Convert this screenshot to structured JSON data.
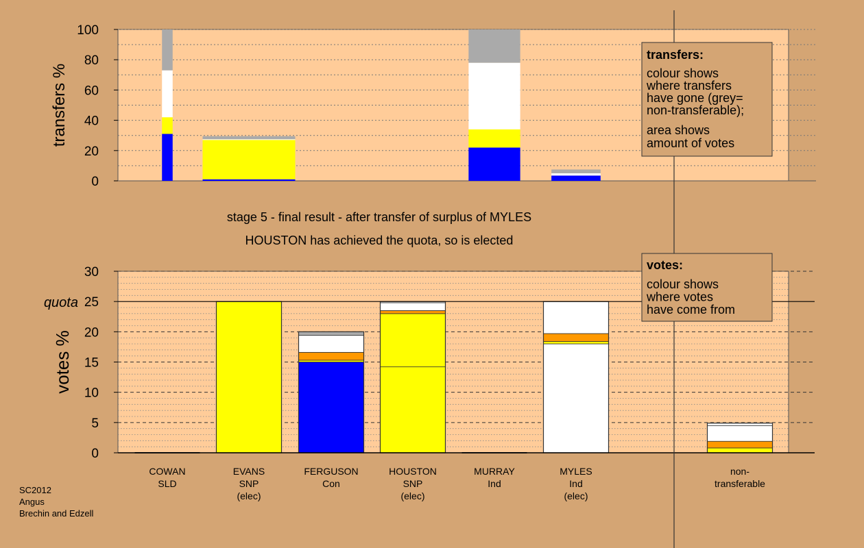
{
  "colors": {
    "background": "#D4A574",
    "plot_area": "#FFCC99",
    "blue": "#0000FF",
    "yellow": "#FFFF00",
    "white": "#FFFFFF",
    "grey": "#AAAAAA",
    "orange": "#FF9900"
  },
  "captions": {
    "line1": "stage 5 - final result - after transfer of surplus of MYLES",
    "line2": "HOUSTON has achieved the quota, so is elected"
  },
  "footer": {
    "line1": "SC2012",
    "line2": "Angus",
    "line3": "Brechin and Edzell"
  },
  "legend_transfers": {
    "title": "transfers:",
    "lines1": [
      "colour shows",
      "where transfers",
      "have gone (grey=",
      "non-transferable);"
    ],
    "lines2": [
      "area shows",
      "amount of votes"
    ]
  },
  "legend_votes": {
    "title": "votes:",
    "lines": [
      "colour shows",
      "where votes",
      "have come from"
    ]
  },
  "candidates": [
    {
      "name": "COWAN",
      "party": "SLD",
      "status": ""
    },
    {
      "name": "EVANS",
      "party": "SNP",
      "status": "(elec)"
    },
    {
      "name": "FERGUSON",
      "party": "Con",
      "status": ""
    },
    {
      "name": "HOUSTON",
      "party": "SNP",
      "status": "(elec)"
    },
    {
      "name": "MURRAY",
      "party": "Ind",
      "status": ""
    },
    {
      "name": "MYLES",
      "party": "Ind",
      "status": "(elec)"
    },
    {
      "name": "",
      "party": "",
      "status": ""
    },
    {
      "name": "non-",
      "party": "transferable",
      "status": ""
    }
  ],
  "chart_data": [
    {
      "type": "bar",
      "stacked": true,
      "ylabel": "transfers %",
      "ylim": [
        0,
        100
      ],
      "yticks": [
        0,
        20,
        40,
        60,
        80,
        100
      ],
      "grid": "dotted",
      "note": "bar width shows amount of votes transferred; segments stacked bottom to top",
      "bars": [
        {
          "column": 0,
          "width": 0.13,
          "segments": [
            {
              "color": "blue",
              "value": 31
            },
            {
              "color": "yellow",
              "value": 11
            },
            {
              "color": "white",
              "value": 31
            },
            {
              "color": "grey",
              "value": 27
            }
          ]
        },
        {
          "column": 1,
          "width": 1.13,
          "segments": [
            {
              "color": "blue",
              "value": 1
            },
            {
              "color": "yellow",
              "value": 26
            },
            {
              "color": "white",
              "value": 0.5
            },
            {
              "color": "grey",
              "value": 2
            }
          ]
        },
        {
          "column": 4,
          "width": 0.63,
          "segments": [
            {
              "color": "blue",
              "value": 22
            },
            {
              "color": "yellow",
              "value": 12
            },
            {
              "color": "white",
              "value": 44
            },
            {
              "color": "grey",
              "value": 22
            }
          ]
        },
        {
          "column": 5,
          "width": 0.6,
          "segments": [
            {
              "color": "blue",
              "value": 3.5
            },
            {
              "color": "white",
              "value": 1.5
            },
            {
              "color": "grey",
              "value": 2.5
            }
          ]
        }
      ]
    },
    {
      "type": "bar",
      "stacked": true,
      "ylabel": "votes %",
      "ylim": [
        0,
        30
      ],
      "yticks": [
        0,
        5,
        10,
        15,
        20,
        25,
        30
      ],
      "quota": {
        "label": "quota",
        "value": 25
      },
      "bars": [
        {
          "candidate": "COWAN",
          "segments": []
        },
        {
          "candidate": "EVANS",
          "segments": [
            {
              "color": "yellow",
              "value": 25
            }
          ]
        },
        {
          "candidate": "FERGUSON",
          "segments": [
            {
              "color": "blue",
              "value": 15
            },
            {
              "color": "yellow",
              "value": 0.3
            },
            {
              "color": "orange",
              "value": 1.3
            },
            {
              "color": "white",
              "value": 2.8
            },
            {
              "color": "grey",
              "value": 0.6
            }
          ]
        },
        {
          "candidate": "HOUSTON",
          "segments": [
            {
              "color": "yellow",
              "value": 14.2
            },
            {
              "color": "yellow",
              "value": 8.8
            },
            {
              "color": "orange",
              "value": 0.5
            },
            {
              "color": "white",
              "value": 1.3
            },
            {
              "color": "white",
              "value": 0.2
            }
          ]
        },
        {
          "candidate": "MURRAY",
          "segments": []
        },
        {
          "candidate": "MYLES",
          "segments": [
            {
              "color": "white",
              "value": 18
            },
            {
              "color": "yellow",
              "value": 0.4
            },
            {
              "color": "orange",
              "value": 1.3
            },
            {
              "color": "white",
              "value": 5.3
            }
          ]
        },
        {
          "candidate": "",
          "segments": []
        },
        {
          "candidate": "non-transferable",
          "segments": [
            {
              "color": "yellow",
              "value": 0.8
            },
            {
              "color": "orange",
              "value": 1.1
            },
            {
              "color": "white",
              "value": 2.6
            },
            {
              "color": "white",
              "value": 0.4
            }
          ]
        }
      ]
    }
  ]
}
